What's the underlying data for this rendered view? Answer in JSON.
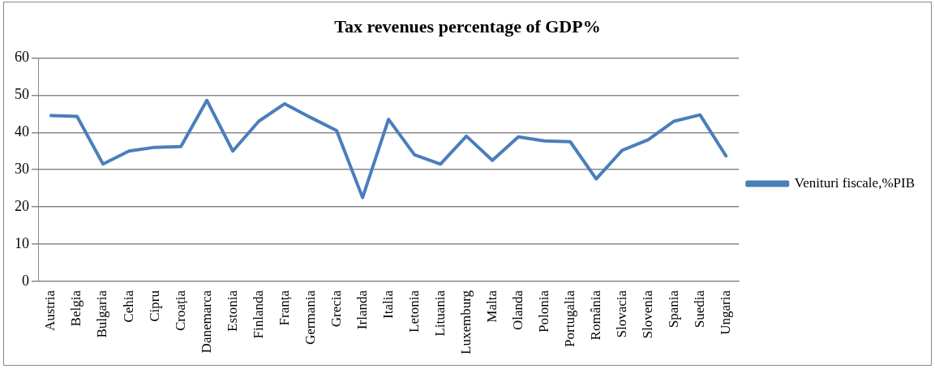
{
  "chart_data": {
    "type": "line",
    "title": "Tax revenues percentage of GDP%",
    "categories": [
      "Austria",
      "Belgia",
      "Bulgaria",
      "Cehia",
      "Cipru",
      "Croația",
      "Danemarca",
      "Estonia",
      "Finlanda",
      "Franța",
      "Germania",
      "Grecia",
      "Irlanda",
      "Italia",
      "Letonia",
      "Lituania",
      "Luxemburg",
      "Malta",
      "Olanda",
      "Polonia",
      "Portugalia",
      "România",
      "Slovacia",
      "Slovenia",
      "Spania",
      "Suedia",
      "Ungaria"
    ],
    "series": [
      {
        "name": "Venituri fiscale,%PIB",
        "color": "#4a7ebb",
        "values": [
          44.5,
          44.3,
          31.5,
          35,
          36,
          36.2,
          48.6,
          35,
          43,
          47.7,
          44,
          40.5,
          22.5,
          43.5,
          34,
          31.5,
          39,
          32.5,
          38.8,
          37.7,
          37.5,
          27.5,
          35.2,
          38,
          43,
          44.7,
          33.7
        ]
      }
    ],
    "ylim": [
      0,
      60
    ],
    "yticks": [
      0,
      10,
      20,
      30,
      40,
      50,
      60
    ],
    "grid": "y",
    "legend": "right",
    "marker": "none",
    "line_style": "solid"
  }
}
